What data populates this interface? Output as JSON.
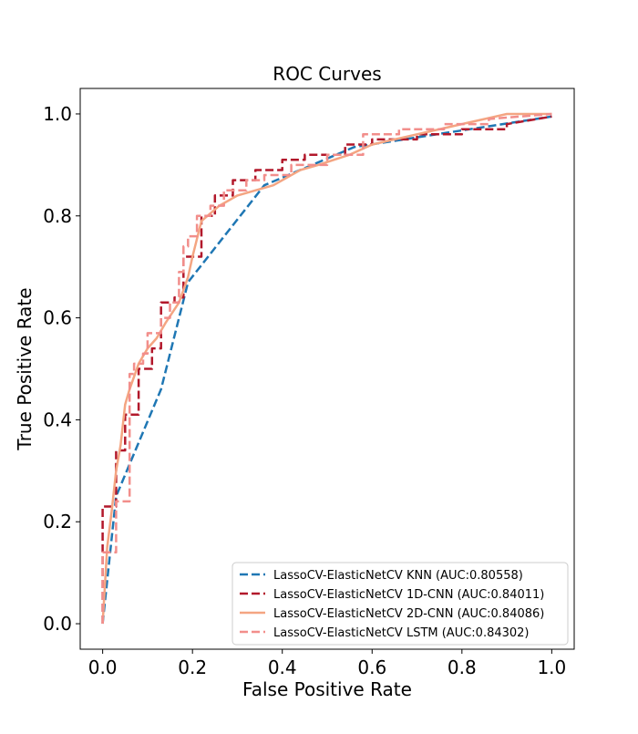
{
  "chart_data": {
    "type": "line",
    "title": "ROC Curves",
    "xlabel": "False Positive Rate",
    "ylabel": "True Positive Rate",
    "xlim": [
      -0.05,
      1.05
    ],
    "ylim": [
      -0.05,
      1.05
    ],
    "xticks": [
      "0.0",
      "0.2",
      "0.4",
      "0.6",
      "0.8",
      "1.0"
    ],
    "yticks": [
      "0.0",
      "0.2",
      "0.4",
      "0.6",
      "0.8",
      "1.0"
    ],
    "grid": false,
    "legend_position": "lower-right",
    "series": [
      {
        "name": "LassoCV-ElasticNetCV KNN (AUC:0.80558)",
        "color": "#1f77b4",
        "style": "dashed",
        "x": [
          0.0,
          0.03,
          0.13,
          0.19,
          0.36,
          0.56,
          1.0
        ],
        "y": [
          0.0,
          0.25,
          0.46,
          0.67,
          0.86,
          0.935,
          0.995
        ]
      },
      {
        "name": "LassoCV-ElasticNetCV 1D-CNN (AUC:0.84011)",
        "color": "#b2182b",
        "style": "dashed",
        "x": [
          0.0,
          0.0,
          0.03,
          0.03,
          0.05,
          0.05,
          0.08,
          0.08,
          0.11,
          0.11,
          0.13,
          0.13,
          0.16,
          0.16,
          0.18,
          0.18,
          0.22,
          0.22,
          0.25,
          0.25,
          0.29,
          0.29,
          0.34,
          0.34,
          0.4,
          0.4,
          0.45,
          0.45,
          0.54,
          0.54,
          0.6,
          0.6,
          0.7,
          0.7,
          0.8,
          0.8,
          0.9,
          0.9,
          1.0
        ],
        "y": [
          0.0,
          0.23,
          0.23,
          0.34,
          0.34,
          0.41,
          0.41,
          0.5,
          0.5,
          0.54,
          0.54,
          0.63,
          0.63,
          0.64,
          0.64,
          0.72,
          0.72,
          0.8,
          0.8,
          0.84,
          0.84,
          0.87,
          0.87,
          0.89,
          0.89,
          0.91,
          0.91,
          0.92,
          0.92,
          0.94,
          0.94,
          0.95,
          0.95,
          0.96,
          0.96,
          0.97,
          0.97,
          0.98,
          0.995
        ]
      },
      {
        "name": "LassoCV-ElasticNetCV 2D-CNN (AUC:0.84086)",
        "color": "#f4a582",
        "style": "solid",
        "x": [
          0.0,
          0.01,
          0.02,
          0.03,
          0.04,
          0.05,
          0.06,
          0.08,
          0.1,
          0.12,
          0.14,
          0.17,
          0.19,
          0.2,
          0.22,
          0.26,
          0.3,
          0.34,
          0.38,
          0.44,
          0.48,
          0.55,
          0.6,
          0.7,
          0.8,
          0.9,
          1.0
        ],
        "y": [
          0.0,
          0.15,
          0.22,
          0.3,
          0.35,
          0.43,
          0.46,
          0.51,
          0.54,
          0.56,
          0.59,
          0.63,
          0.68,
          0.72,
          0.79,
          0.82,
          0.84,
          0.85,
          0.86,
          0.89,
          0.9,
          0.92,
          0.94,
          0.96,
          0.98,
          1.0,
          1.0
        ]
      },
      {
        "name": "LassoCV-ElasticNetCV LSTM (AUC:0.84302)",
        "color": "#f28e8b",
        "style": "dashed",
        "x": [
          0.0,
          0.0,
          0.03,
          0.03,
          0.06,
          0.06,
          0.07,
          0.07,
          0.09,
          0.09,
          0.1,
          0.1,
          0.13,
          0.13,
          0.15,
          0.15,
          0.17,
          0.17,
          0.18,
          0.18,
          0.19,
          0.19,
          0.21,
          0.21,
          0.24,
          0.24,
          0.27,
          0.27,
          0.32,
          0.32,
          0.36,
          0.36,
          0.42,
          0.42,
          0.5,
          0.5,
          0.58,
          0.58,
          0.66,
          0.66,
          0.76,
          0.76,
          0.86,
          0.86,
          1.0
        ],
        "y": [
          0.0,
          0.14,
          0.14,
          0.24,
          0.24,
          0.49,
          0.49,
          0.51,
          0.51,
          0.53,
          0.53,
          0.57,
          0.57,
          0.6,
          0.6,
          0.63,
          0.63,
          0.69,
          0.69,
          0.74,
          0.74,
          0.76,
          0.76,
          0.8,
          0.8,
          0.82,
          0.82,
          0.85,
          0.85,
          0.87,
          0.87,
          0.88,
          0.88,
          0.9,
          0.9,
          0.92,
          0.92,
          0.96,
          0.96,
          0.97,
          0.97,
          0.98,
          0.98,
          0.99,
          1.0
        ]
      }
    ]
  }
}
